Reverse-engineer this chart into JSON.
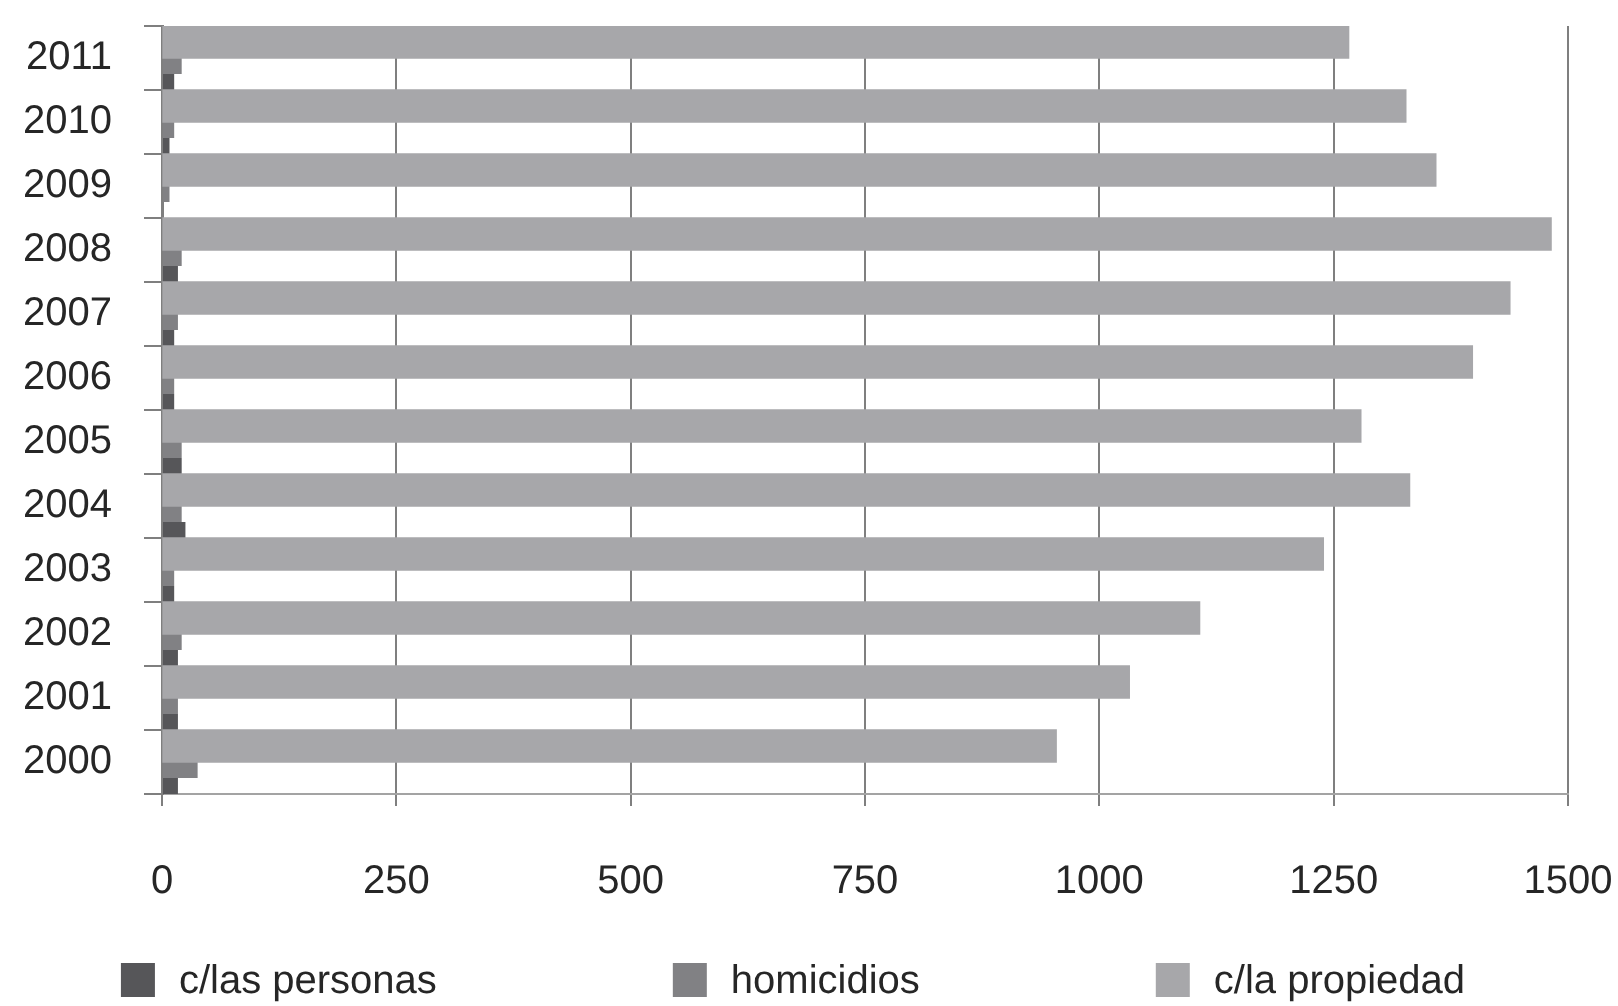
{
  "chart_data": {
    "type": "bar",
    "orientation": "horizontal",
    "categories": [
      "2011",
      "2010",
      "2009",
      "2008",
      "2007",
      "2006",
      "2005",
      "2004",
      "2003",
      "2002",
      "2001",
      "2000"
    ],
    "series": [
      {
        "name": "c/las personas",
        "color": "#565659",
        "values": [
          13,
          8,
          null,
          17,
          13,
          13,
          21,
          25,
          13,
          17,
          17,
          17
        ]
      },
      {
        "name": "homicidios",
        "color": "#818184",
        "values": [
          21,
          13,
          8,
          21,
          17,
          13,
          21,
          21,
          13,
          21,
          17,
          38
        ]
      },
      {
        "name": "c/la propiedad",
        "color": "#a7a7aa",
        "values": [
          1266,
          1327,
          1359,
          1482,
          1438,
          1398,
          1279,
          1331,
          1239,
          1107,
          1032,
          954
        ]
      }
    ],
    "xlim": [
      0,
      1500
    ],
    "xticks": [
      0,
      250,
      500,
      750,
      1000,
      1250,
      1500
    ],
    "grid": "x",
    "legend": "bottom"
  }
}
